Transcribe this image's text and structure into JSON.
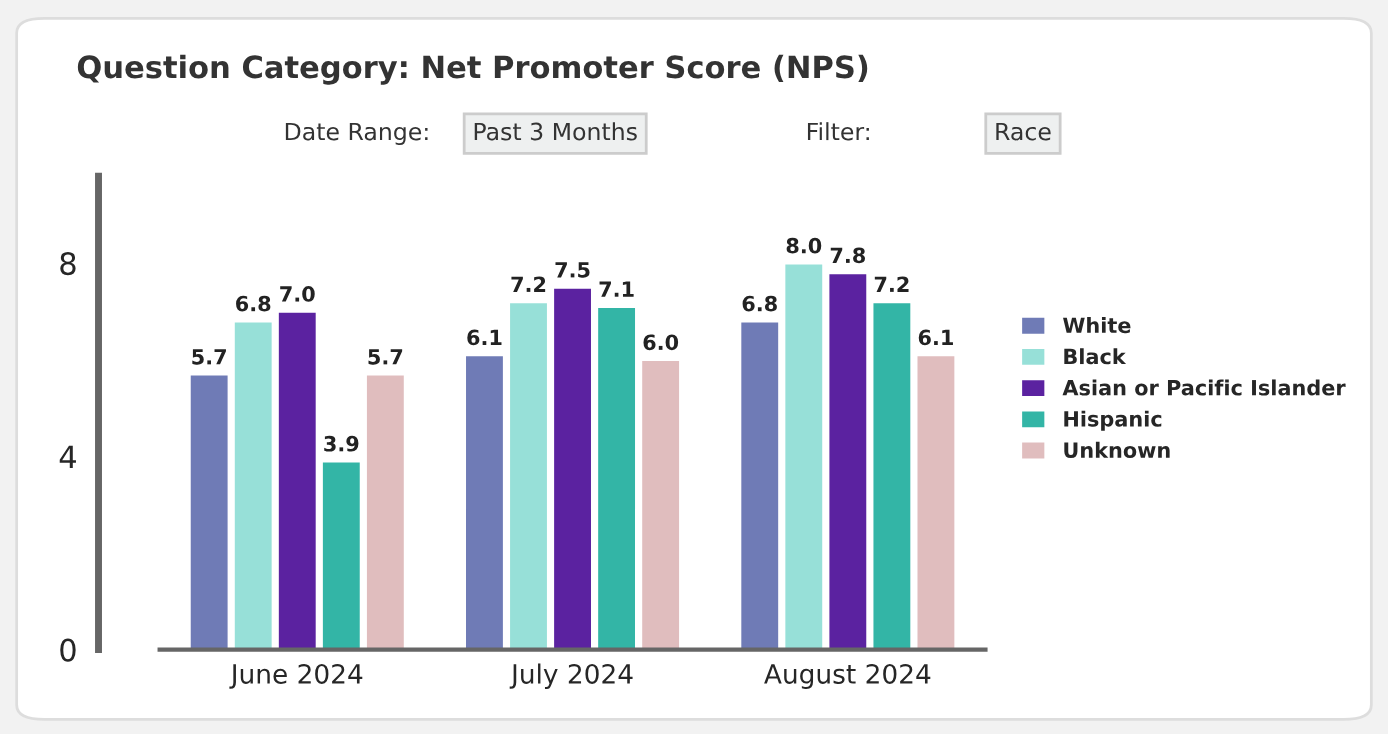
{
  "chart_data": {
    "type": "bar",
    "title": "Question Category: Net Promoter Score (NPS)",
    "annotations": [
      "Date Range:",
      "Past 3 Months",
      "Filter:",
      "Race"
    ],
    "categories": [
      "June 2024",
      "July 2024",
      "August 2024"
    ],
    "series": [
      {
        "name": "White",
        "color": "#6f7bb6",
        "values": [
          5.7,
          6.1,
          6.8
        ],
        "value_labels": [
          "5.7",
          "6.1",
          "6.8"
        ]
      },
      {
        "name": "Black",
        "color": "#97e0d8",
        "values": [
          6.8,
          7.2,
          8.0
        ],
        "value_labels": [
          "6.8",
          "7.2",
          "8.0"
        ]
      },
      {
        "name": "Asian or Pacific Islander",
        "color": "#5b22a0",
        "values": [
          7.0,
          7.5,
          7.8
        ],
        "value_labels": [
          "7.0",
          "7.5",
          "7.8"
        ]
      },
      {
        "name": "Hispanic",
        "color": "#33b5a6",
        "values": [
          3.9,
          7.1,
          7.2
        ],
        "value_labels": [
          "3.9",
          "7.1",
          "7.2"
        ]
      },
      {
        "name": "Unknown",
        "color": "#e0bdbe",
        "values": [
          5.7,
          6.0,
          6.1
        ],
        "value_labels": [
          "5.7",
          "6.0",
          "6.1"
        ]
      }
    ],
    "ylim": [
      0,
      9.8
    ],
    "yticks": [
      0,
      4,
      8
    ],
    "legend": "right",
    "grid": false
  }
}
